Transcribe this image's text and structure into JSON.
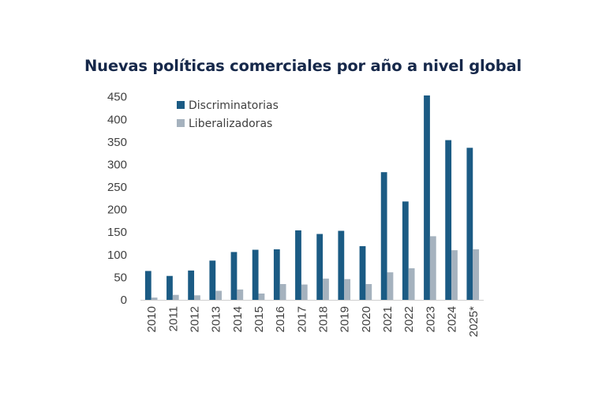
{
  "chart_data": {
    "type": "bar",
    "title": "Nuevas políticas comerciales por año a nivel global",
    "xlabel": "",
    "ylabel": "",
    "ylim": [
      0,
      450
    ],
    "yticks": [
      0,
      50,
      100,
      150,
      200,
      250,
      300,
      350,
      400,
      450
    ],
    "grid": false,
    "legend_position": "top-left",
    "categories": [
      "2010",
      "2011",
      "2012",
      "2013",
      "2014",
      "2015",
      "2016",
      "2017",
      "2018",
      "2019",
      "2020",
      "2021",
      "2022",
      "2023",
      "2024",
      "2025*"
    ],
    "series": [
      {
        "name": "Discriminatorias",
        "color": "#1b5b84",
        "values": [
          64,
          53,
          65,
          87,
          106,
          111,
          112,
          154,
          146,
          153,
          119,
          283,
          218,
          453,
          354,
          337
        ]
      },
      {
        "name": "Liberalizadoras",
        "color": "#a5b2be",
        "values": [
          5,
          11,
          10,
          20,
          23,
          14,
          35,
          34,
          47,
          46,
          35,
          61,
          70,
          141,
          110,
          112
        ]
      }
    ]
  }
}
